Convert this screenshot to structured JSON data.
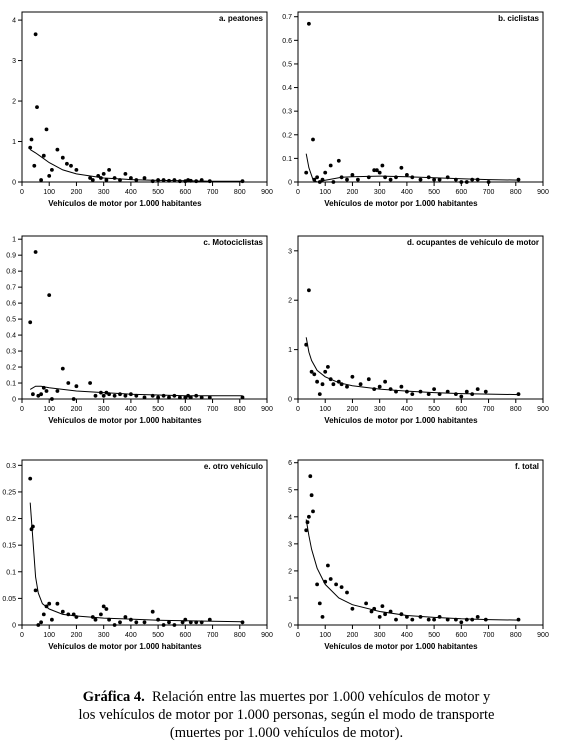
{
  "caption": {
    "label": "Gráfica 4.",
    "lines": [
      "Relación entre las muertes por 1.000 vehículos de motor y",
      "los vehículos de motor por 1.000 personas, según el modo de transporte",
      "(muertes por 1.000 vehículos de motor)."
    ]
  },
  "chart_data": [
    {
      "type": "scatter",
      "title": "a. peatones",
      "xlabel": "Vehículos de motor por 1.000 habitantes",
      "ylabel": "",
      "xlim": [
        0,
        900
      ],
      "ylim": [
        0,
        4.2
      ],
      "xticks": [
        0,
        100,
        200,
        300,
        400,
        500,
        600,
        700,
        800,
        900
      ],
      "yticks": [
        0,
        1,
        2,
        3,
        4
      ],
      "grid": false,
      "x": [
        30,
        35,
        45,
        50,
        55,
        70,
        80,
        90,
        100,
        110,
        130,
        150,
        165,
        180,
        200,
        250,
        260,
        280,
        290,
        300,
        310,
        320,
        340,
        360,
        380,
        400,
        420,
        450,
        480,
        500,
        520,
        540,
        560,
        580,
        600,
        610,
        620,
        640,
        660,
        690,
        810
      ],
      "y": [
        0.85,
        1.05,
        0.4,
        3.65,
        1.85,
        0.05,
        0.65,
        1.3,
        0.15,
        0.3,
        0.8,
        0.6,
        0.45,
        0.4,
        0.3,
        0.1,
        0.05,
        0.15,
        0.1,
        0.2,
        0.05,
        0.3,
        0.1,
        0.05,
        0.2,
        0.1,
        0.05,
        0.1,
        0.02,
        0.05,
        0.05,
        0.03,
        0.05,
        0.02,
        0.02,
        0.05,
        0.03,
        0.02,
        0.05,
        0.02,
        0.02
      ],
      "fit": {
        "x": [
          30,
          50,
          75,
          100,
          150,
          200,
          300,
          400,
          500,
          600,
          700,
          810
        ],
        "y": [
          0.8,
          0.72,
          0.6,
          0.48,
          0.3,
          0.2,
          0.1,
          0.06,
          0.04,
          0.03,
          0.02,
          0.02
        ]
      }
    },
    {
      "type": "scatter",
      "title": "b. ciclistas",
      "xlabel": "Vehículos de motor por 1.000 habitantes",
      "ylabel": "",
      "xlim": [
        0,
        900
      ],
      "ylim": [
        0,
        0.72
      ],
      "xticks": [
        0,
        100,
        200,
        300,
        400,
        500,
        600,
        700,
        800,
        900
      ],
      "yticks": [
        0,
        0.1,
        0.2,
        0.3,
        0.4,
        0.5,
        0.6,
        0.7
      ],
      "grid": false,
      "x": [
        30,
        40,
        55,
        60,
        70,
        80,
        90,
        100,
        120,
        130,
        150,
        160,
        180,
        200,
        220,
        260,
        280,
        290,
        300,
        310,
        320,
        340,
        360,
        380,
        400,
        420,
        450,
        480,
        500,
        520,
        550,
        580,
        600,
        620,
        640,
        660,
        700,
        810
      ],
      "y": [
        0.04,
        0.67,
        0.18,
        0.01,
        0.02,
        0.0,
        0.01,
        0.04,
        0.07,
        0.0,
        0.09,
        0.02,
        0.01,
        0.03,
        0.01,
        0.02,
        0.05,
        0.05,
        0.04,
        0.07,
        0.02,
        0.01,
        0.02,
        0.06,
        0.03,
        0.02,
        0.01,
        0.02,
        0.01,
        0.01,
        0.02,
        0.01,
        0.0,
        0.0,
        0.01,
        0.01,
        0.0,
        0.01
      ],
      "fit": {
        "x": [
          30,
          40,
          55,
          70,
          90,
          120,
          160,
          200,
          300,
          400,
          500,
          600,
          700,
          810
        ],
        "y": [
          0.12,
          0.06,
          0.01,
          0.0,
          0.005,
          0.012,
          0.02,
          0.022,
          0.025,
          0.022,
          0.018,
          0.014,
          0.01,
          0.008
        ]
      }
    },
    {
      "type": "scatter",
      "title": "c. Motociclistas",
      "xlabel": "Vehículos de motor por 1.000 habitantes",
      "ylabel": "",
      "xlim": [
        0,
        900
      ],
      "ylim": [
        0,
        1.02
      ],
      "xticks": [
        0,
        100,
        200,
        300,
        400,
        500,
        600,
        700,
        800,
        900
      ],
      "yticks": [
        0,
        0.1,
        0.2,
        0.3,
        0.4,
        0.5,
        0.6,
        0.7,
        0.8,
        0.9,
        1.0
      ],
      "grid": false,
      "x": [
        30,
        40,
        50,
        60,
        70,
        80,
        90,
        100,
        110,
        130,
        150,
        170,
        190,
        200,
        250,
        270,
        290,
        300,
        310,
        320,
        340,
        360,
        380,
        400,
        420,
        450,
        480,
        500,
        520,
        540,
        560,
        580,
        600,
        610,
        620,
        640,
        660,
        690,
        810
      ],
      "y": [
        0.48,
        0.03,
        0.92,
        0.02,
        0.03,
        0.07,
        0.05,
        0.65,
        0.0,
        0.05,
        0.19,
        0.1,
        0.0,
        0.08,
        0.1,
        0.02,
        0.04,
        0.02,
        0.04,
        0.03,
        0.02,
        0.03,
        0.02,
        0.03,
        0.02,
        0.01,
        0.02,
        0.01,
        0.02,
        0.01,
        0.02,
        0.01,
        0.01,
        0.02,
        0.01,
        0.02,
        0.01,
        0.01,
        0.01
      ],
      "fit": {
        "x": [
          30,
          50,
          70,
          100,
          150,
          200,
          300,
          400,
          500,
          600,
          700,
          810
        ],
        "y": [
          0.06,
          0.08,
          0.08,
          0.07,
          0.06,
          0.05,
          0.04,
          0.03,
          0.025,
          0.02,
          0.02,
          0.02
        ]
      }
    },
    {
      "type": "scatter",
      "title": "d. ocupantes de vehículo de motor",
      "xlabel": "Vehículos de motor por 1.000 habitantes",
      "ylabel": "",
      "xlim": [
        0,
        900
      ],
      "ylim": [
        0,
        3.3
      ],
      "xticks": [
        0,
        100,
        200,
        300,
        400,
        500,
        600,
        700,
        800,
        900
      ],
      "yticks": [
        0,
        1,
        2,
        3
      ],
      "grid": false,
      "x": [
        30,
        40,
        50,
        60,
        70,
        80,
        90,
        100,
        110,
        120,
        130,
        150,
        160,
        180,
        200,
        230,
        260,
        280,
        300,
        320,
        340,
        360,
        380,
        400,
        420,
        450,
        480,
        500,
        520,
        550,
        580,
        600,
        620,
        640,
        660,
        690,
        810
      ],
      "y": [
        1.1,
        2.2,
        0.55,
        0.5,
        0.35,
        0.1,
        0.3,
        0.55,
        0.65,
        0.4,
        0.3,
        0.35,
        0.3,
        0.25,
        0.45,
        0.3,
        0.4,
        0.2,
        0.25,
        0.35,
        0.2,
        0.15,
        0.25,
        0.15,
        0.1,
        0.15,
        0.1,
        0.2,
        0.1,
        0.15,
        0.1,
        0.05,
        0.15,
        0.1,
        0.2,
        0.15,
        0.1
      ],
      "fit": {
        "x": [
          30,
          40,
          50,
          70,
          100,
          150,
          200,
          300,
          400,
          500,
          600,
          700,
          810
        ],
        "y": [
          1.25,
          0.95,
          0.78,
          0.58,
          0.45,
          0.33,
          0.27,
          0.2,
          0.16,
          0.13,
          0.11,
          0.1,
          0.09
        ]
      }
    },
    {
      "type": "scatter",
      "title": "e. otro vehículo",
      "xlabel": "Vehículos de motor por 1.000 habitantes",
      "ylabel": "",
      "xlim": [
        0,
        900
      ],
      "ylim": [
        0,
        0.31
      ],
      "xticks": [
        0,
        100,
        200,
        300,
        400,
        500,
        600,
        700,
        800,
        900
      ],
      "yticks": [
        0,
        0.05,
        0.1,
        0.15,
        0.2,
        0.25,
        0.3
      ],
      "grid": false,
      "x": [
        30,
        35,
        40,
        50,
        60,
        70,
        80,
        90,
        100,
        110,
        130,
        150,
        170,
        190,
        200,
        260,
        270,
        290,
        300,
        310,
        320,
        340,
        360,
        380,
        400,
        420,
        450,
        480,
        500,
        520,
        540,
        560,
        590,
        600,
        620,
        640,
        660,
        690,
        810
      ],
      "y": [
        0.275,
        0.18,
        0.185,
        0.065,
        0.0,
        0.005,
        0.02,
        0.035,
        0.04,
        0.01,
        0.04,
        0.025,
        0.02,
        0.02,
        0.015,
        0.015,
        0.01,
        0.02,
        0.035,
        0.03,
        0.01,
        0.0,
        0.005,
        0.015,
        0.01,
        0.005,
        0.005,
        0.025,
        0.01,
        0.0,
        0.005,
        0.0,
        0.005,
        0.01,
        0.005,
        0.005,
        0.005,
        0.01,
        0.005
      ],
      "fit": {
        "x": [
          30,
          40,
          50,
          60,
          75,
          100,
          150,
          200,
          300,
          400,
          500,
          600,
          700,
          810
        ],
        "y": [
          0.23,
          0.16,
          0.09,
          0.06,
          0.04,
          0.03,
          0.02,
          0.017,
          0.013,
          0.011,
          0.009,
          0.008,
          0.007,
          0.006
        ]
      }
    },
    {
      "type": "scatter",
      "title": "f. total",
      "xlabel": "Vehículos de motor por 1.000 habitantes",
      "ylabel": "",
      "xlim": [
        0,
        900
      ],
      "ylim": [
        0,
        6.1
      ],
      "xticks": [
        0,
        100,
        200,
        300,
        400,
        500,
        600,
        700,
        800,
        900
      ],
      "yticks": [
        0,
        1,
        2,
        3,
        4,
        5,
        6
      ],
      "grid": false,
      "x": [
        30,
        35,
        40,
        45,
        50,
        55,
        70,
        80,
        90,
        100,
        110,
        120,
        140,
        160,
        180,
        200,
        250,
        270,
        280,
        300,
        310,
        320,
        340,
        360,
        380,
        400,
        420,
        450,
        480,
        500,
        520,
        550,
        580,
        600,
        620,
        640,
        660,
        690,
        810
      ],
      "y": [
        3.5,
        3.8,
        4.0,
        5.5,
        4.8,
        4.2,
        1.5,
        0.8,
        0.3,
        1.6,
        2.2,
        1.7,
        1.5,
        1.4,
        1.2,
        0.6,
        0.8,
        0.5,
        0.6,
        0.3,
        0.7,
        0.4,
        0.5,
        0.2,
        0.4,
        0.3,
        0.2,
        0.3,
        0.2,
        0.2,
        0.3,
        0.2,
        0.2,
        0.1,
        0.2,
        0.2,
        0.3,
        0.2,
        0.2
      ],
      "fit": {
        "x": [
          30,
          40,
          50,
          70,
          100,
          150,
          200,
          300,
          400,
          500,
          600,
          700,
          810
        ],
        "y": [
          3.9,
          3.3,
          2.8,
          2.1,
          1.5,
          1.0,
          0.75,
          0.5,
          0.35,
          0.28,
          0.23,
          0.2,
          0.18
        ]
      }
    }
  ]
}
